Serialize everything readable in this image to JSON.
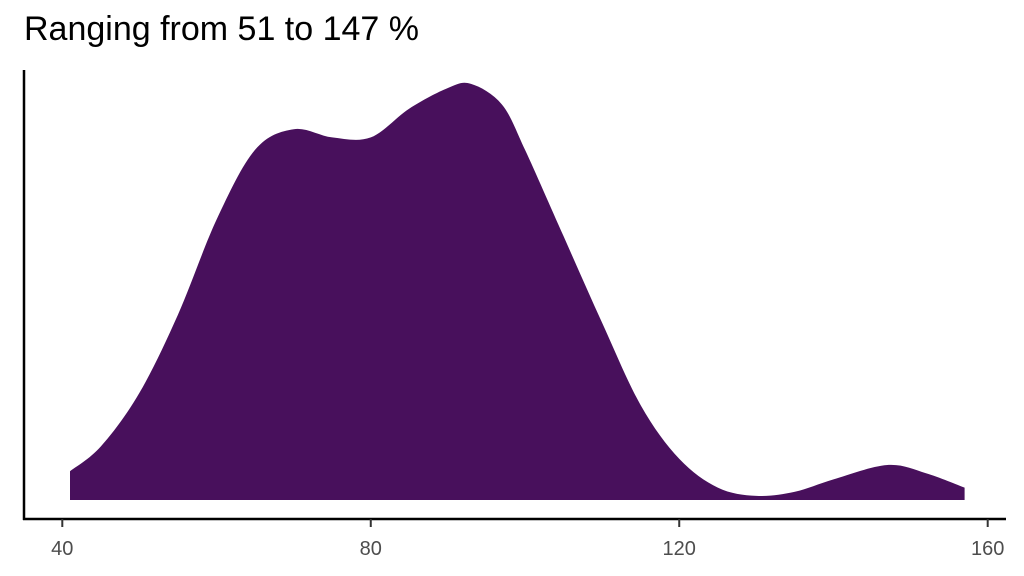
{
  "chart_data": {
    "type": "area",
    "title": "Ranging from 51 to 147 %",
    "xlabel": "",
    "ylabel": "",
    "xlim": [
      36,
      162
    ],
    "ylim": [
      0,
      1
    ],
    "x_ticks": [
      40,
      80,
      120,
      160
    ],
    "grid": false,
    "legend": "none",
    "fill_color": "#48105C",
    "series": [
      {
        "x": [
          41,
          45,
          50,
          55,
          60,
          65,
          70,
          75,
          80,
          85,
          90,
          93,
          97,
          100,
          105,
          110,
          115,
          120,
          125,
          130,
          135,
          140,
          147,
          152,
          157
        ],
        "y": [
          0.07,
          0.13,
          0.26,
          0.45,
          0.68,
          0.85,
          0.9,
          0.88,
          0.88,
          0.95,
          1.0,
          1.01,
          0.96,
          0.85,
          0.64,
          0.43,
          0.23,
          0.1,
          0.03,
          0.01,
          0.02,
          0.05,
          0.085,
          0.065,
          0.03
        ]
      }
    ]
  }
}
